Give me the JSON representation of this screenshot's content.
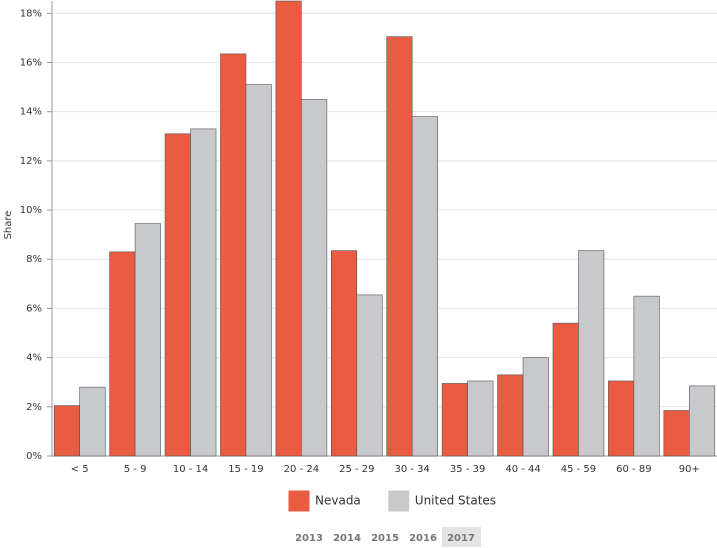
{
  "chart_data": {
    "type": "bar",
    "y_label": "Share",
    "categories": [
      "< 5",
      "5 - 9",
      "10 - 14",
      "15 - 19",
      "20 - 24",
      "25 - 29",
      "30 - 34",
      "35 - 39",
      "40 - 44",
      "45 - 59",
      "60 - 89",
      "90+"
    ],
    "series": [
      {
        "name": "Nevada",
        "color": "#e95c42",
        "values": [
          2.05,
          8.3,
          13.1,
          16.35,
          18.5,
          8.35,
          17.05,
          2.95,
          3.3,
          5.4,
          3.05,
          1.85
        ]
      },
      {
        "name": "United States",
        "color": "#c8c9cc",
        "values": [
          2.8,
          9.45,
          13.3,
          15.1,
          14.5,
          6.55,
          13.8,
          3.05,
          4.0,
          8.35,
          6.5,
          2.85
        ]
      }
    ],
    "ylim": [
      0,
      18.5
    ],
    "yticks": [
      {
        "value": 0,
        "label": "0%"
      },
      {
        "value": 2,
        "label": "2%"
      },
      {
        "value": 4,
        "label": "4%"
      },
      {
        "value": 6,
        "label": "6%"
      },
      {
        "value": 8,
        "label": "8%"
      },
      {
        "value": 10,
        "label": "10%"
      },
      {
        "value": 12,
        "label": "12%"
      },
      {
        "value": 14,
        "label": "14%"
      },
      {
        "value": 16,
        "label": "16%"
      },
      {
        "value": 18,
        "label": "18%"
      }
    ],
    "grid": true,
    "years": [
      "2013",
      "2014",
      "2015",
      "2016",
      "2017"
    ],
    "selected_year": 4
  }
}
